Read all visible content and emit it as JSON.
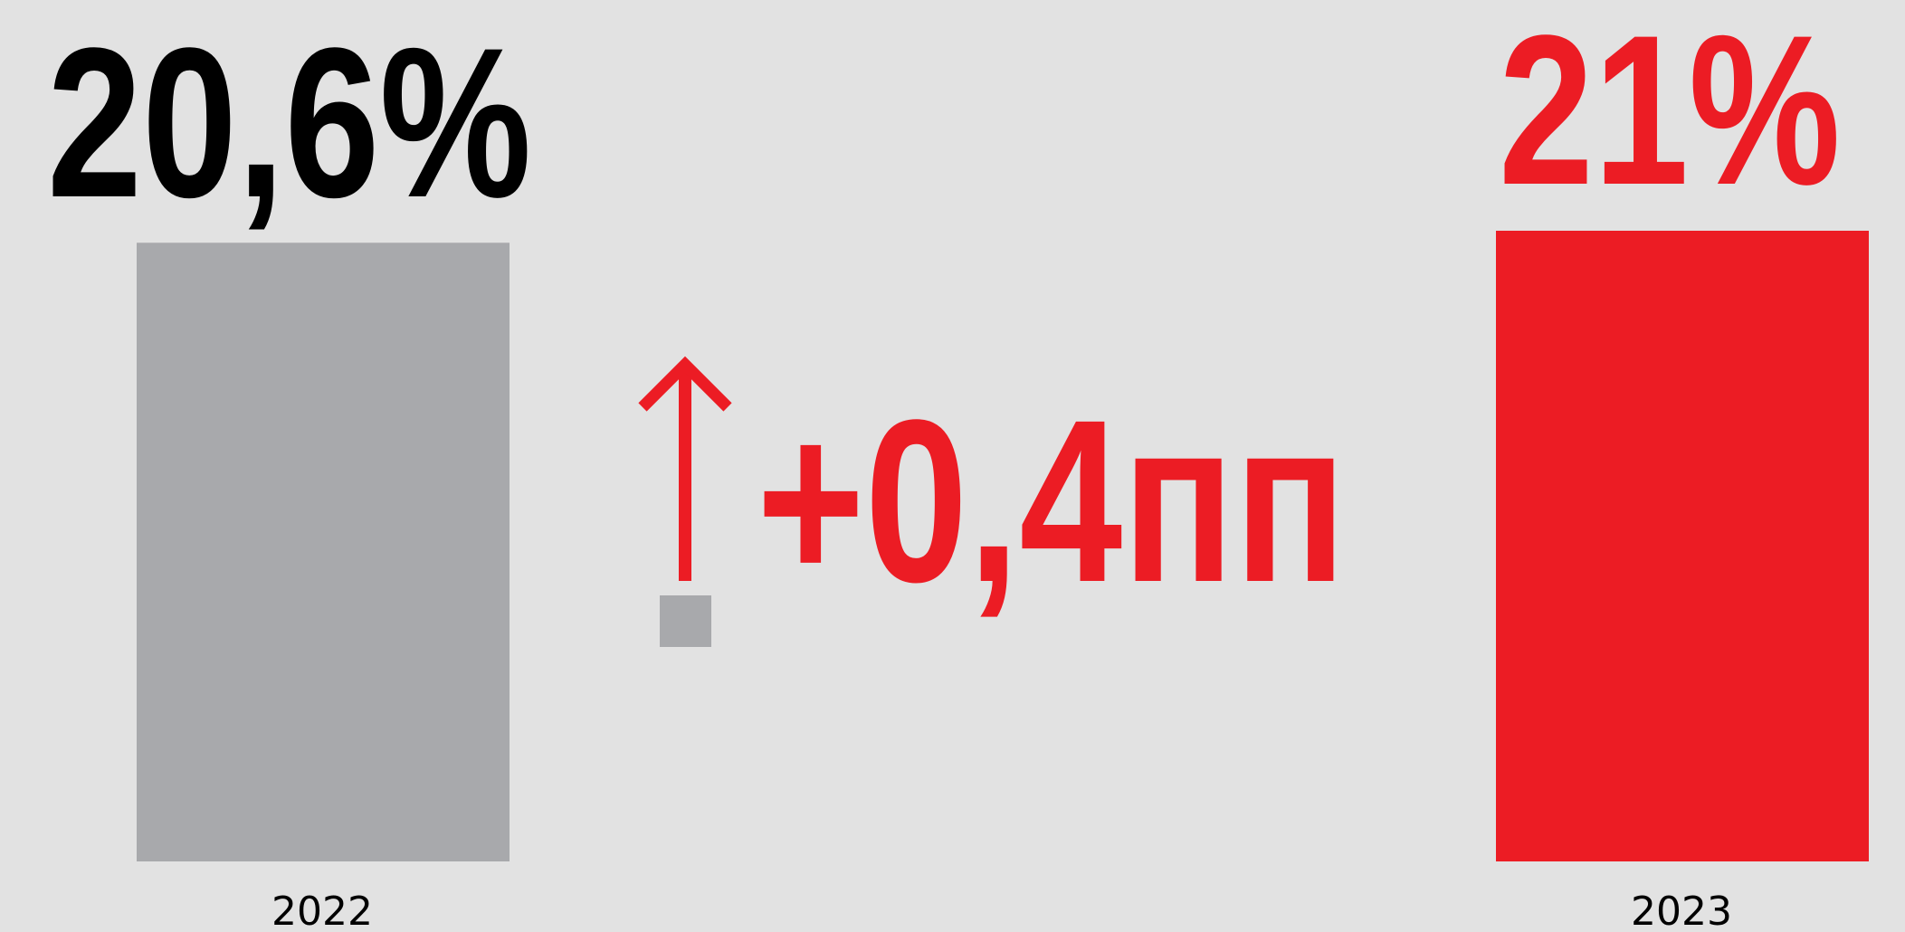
{
  "colors": {
    "background": "#e2e2e2",
    "bar_2022": "#a8a9ac",
    "bar_2023": "#ec1c24",
    "accent": "#ec1c24",
    "text_dark": "#000000"
  },
  "chart_data": {
    "type": "bar",
    "categories": [
      "2022",
      "2023"
    ],
    "values": [
      20.6,
      21.0
    ],
    "value_labels": [
      "20,6%",
      "21%"
    ],
    "ylim": [
      0,
      21
    ],
    "title": "",
    "xlabel": "",
    "ylabel": "",
    "grid": false,
    "change": {
      "label": "+0,4пп",
      "value": 0.4,
      "direction": "up",
      "icon": "arrow-up-icon"
    }
  }
}
